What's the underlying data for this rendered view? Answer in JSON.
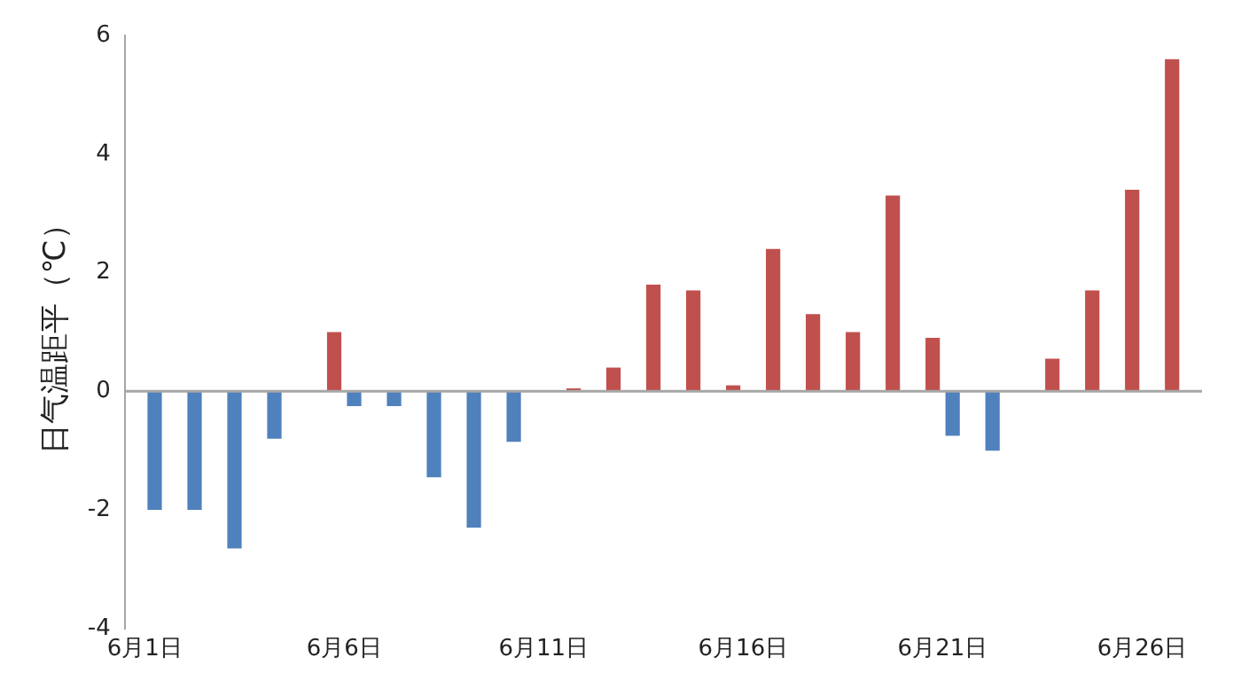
{
  "chart_data": {
    "type": "bar",
    "ylabel": "日气温距平（℃）",
    "categories": [
      "6月1日",
      null,
      null,
      null,
      null,
      "6月6日",
      null,
      null,
      null,
      null,
      "6月11日",
      null,
      null,
      null,
      null,
      "6月16日",
      null,
      null,
      null,
      null,
      "6月21日",
      null,
      null,
      null,
      null,
      "6月26日",
      null
    ],
    "series": [
      {
        "color": "#c0504d",
        "values": [
          null,
          null,
          null,
          null,
          null,
          1.0,
          null,
          null,
          null,
          null,
          null,
          0.05,
          0.4,
          1.8,
          1.7,
          0.1,
          2.4,
          1.3,
          1.0,
          3.3,
          0.9,
          null,
          null,
          0.55,
          1.7,
          3.4,
          5.6
        ]
      },
      {
        "color": "#4f81bd",
        "values": [
          -2.0,
          -2.0,
          -2.65,
          -0.8,
          null,
          -0.25,
          -0.25,
          -1.45,
          -2.3,
          -0.85,
          null,
          null,
          null,
          null,
          null,
          null,
          null,
          null,
          null,
          null,
          -0.75,
          -1.0,
          null,
          null,
          null,
          null,
          null
        ]
      }
    ],
    "ylim": [
      -4,
      6
    ],
    "yticks": [
      -4,
      -2,
      0,
      2,
      4,
      6
    ],
    "grid": false,
    "legend": false,
    "ref_lines": [
      {
        "axis": "y",
        "value": 0,
        "color": "#a6a6a6"
      }
    ]
  }
}
